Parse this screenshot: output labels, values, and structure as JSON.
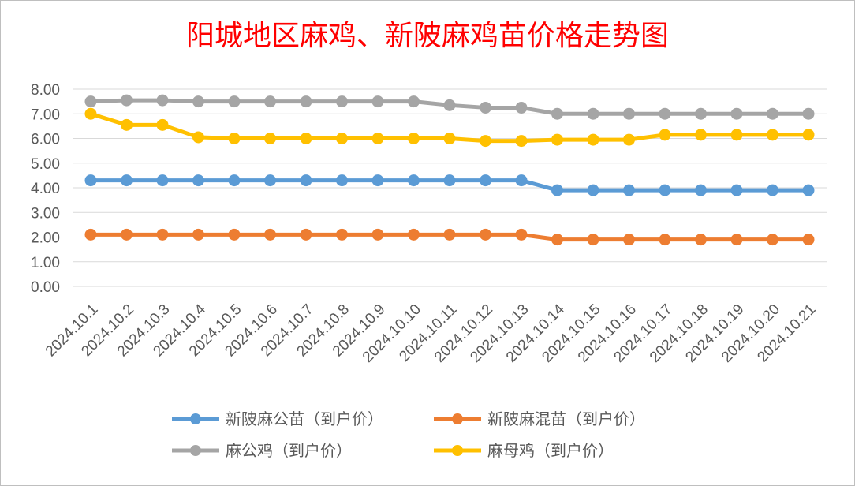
{
  "chart_data": {
    "type": "line",
    "title": "阳城地区麻鸡、新陂麻鸡苗价格走势图",
    "xlabel": "",
    "ylabel": "",
    "ylim": [
      0,
      8
    ],
    "yticks": [
      "0.00",
      "1.00",
      "2.00",
      "3.00",
      "4.00",
      "5.00",
      "6.00",
      "7.00",
      "8.00"
    ],
    "grid": true,
    "legend_position": "bottom",
    "categories": [
      "2024.10.1",
      "2024.10.2",
      "2024.10.3",
      "2024.10.4",
      "2024.10.5",
      "2024.10.6",
      "2024.10.7",
      "2024.10.8",
      "2024.10.9",
      "2024.10.10",
      "2024.10.11",
      "2024.10.12",
      "2024.10.13",
      "2024.10.14",
      "2024.10.15",
      "2024.10.16",
      "2024.10.17",
      "2024.10.18",
      "2024.10.19",
      "2024.10.20",
      "2024.10.21"
    ],
    "series": [
      {
        "name": "新陂麻公苗（到户价）",
        "color": "#5b9bd5",
        "values": [
          4.3,
          4.3,
          4.3,
          4.3,
          4.3,
          4.3,
          4.3,
          4.3,
          4.3,
          4.3,
          4.3,
          4.3,
          4.3,
          3.9,
          3.9,
          3.9,
          3.9,
          3.9,
          3.9,
          3.9,
          3.9
        ]
      },
      {
        "name": "新陂麻混苗（到户价）",
        "color": "#ed7d31",
        "values": [
          2.1,
          2.1,
          2.1,
          2.1,
          2.1,
          2.1,
          2.1,
          2.1,
          2.1,
          2.1,
          2.1,
          2.1,
          2.1,
          1.9,
          1.9,
          1.9,
          1.9,
          1.9,
          1.9,
          1.9,
          1.9
        ]
      },
      {
        "name": "麻公鸡（到户价）",
        "color": "#a5a5a5",
        "values": [
          7.5,
          7.55,
          7.55,
          7.5,
          7.5,
          7.5,
          7.5,
          7.5,
          7.5,
          7.5,
          7.35,
          7.25,
          7.25,
          7.0,
          7.0,
          7.0,
          7.0,
          7.0,
          7.0,
          7.0,
          7.0
        ]
      },
      {
        "name": "麻母鸡（到户价）",
        "color": "#ffc000",
        "values": [
          7.0,
          6.55,
          6.55,
          6.05,
          6.0,
          6.0,
          6.0,
          6.0,
          6.0,
          6.0,
          6.0,
          5.9,
          5.9,
          5.95,
          5.95,
          5.95,
          6.15,
          6.15,
          6.15,
          6.15,
          6.15
        ]
      }
    ]
  }
}
